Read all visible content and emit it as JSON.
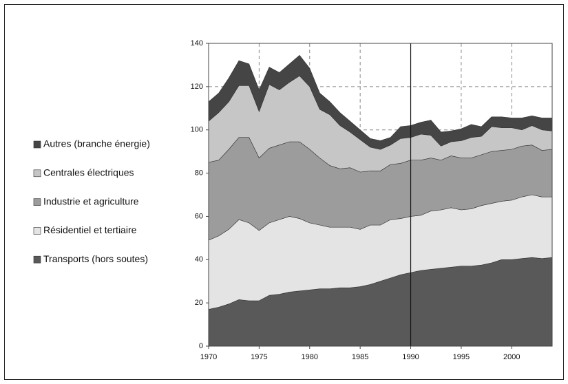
{
  "chart_data": {
    "type": "stacked_area",
    "x": [
      1970,
      1971,
      1972,
      1973,
      1974,
      1975,
      1976,
      1977,
      1978,
      1979,
      1980,
      1981,
      1982,
      1983,
      1984,
      1985,
      1986,
      1987,
      1988,
      1989,
      1990,
      1991,
      1992,
      1993,
      1994,
      1995,
      1996,
      1997,
      1998,
      1999,
      2000,
      2001,
      2002,
      2003,
      2004
    ],
    "series": [
      {
        "name": "Transports (hors soutes)",
        "color": "#595959",
        "values": [
          17,
          18,
          19.5,
          21.5,
          21,
          21,
          23.5,
          24,
          25,
          25.5,
          26,
          26.5,
          26.5,
          27,
          27,
          27.5,
          28.5,
          30,
          31.5,
          33,
          34,
          35,
          35.5,
          36,
          36.5,
          37,
          37,
          37.5,
          38.5,
          40,
          40,
          40.5,
          41,
          40.5,
          41
        ]
      },
      {
        "name": "Résidentiel et tertiaire",
        "color": "#e4e4e4",
        "values": [
          32,
          33,
          34.5,
          37,
          36,
          32.5,
          33.5,
          34.5,
          35,
          33.5,
          31,
          29.5,
          28.5,
          28,
          28,
          26.5,
          27.5,
          26,
          27,
          26,
          26,
          25.5,
          27,
          27,
          27.5,
          26,
          26.5,
          27.5,
          27.5,
          27,
          27.5,
          28.5,
          29,
          28.5,
          28
        ]
      },
      {
        "name": "Industrie et agriculture",
        "color": "#9c9c9c",
        "values": [
          36,
          35,
          37,
          38,
          39.5,
          33.5,
          34.5,
          34.5,
          34.5,
          35.5,
          34,
          31,
          28.5,
          27,
          27.5,
          26.5,
          25,
          25,
          25.5,
          25.5,
          26,
          25.5,
          24.5,
          23,
          24,
          24,
          23.5,
          23.5,
          24,
          23.5,
          23.5,
          23.5,
          23,
          21.5,
          22
        ]
      },
      {
        "name": "Centrales électriques",
        "color": "#c6c6c6",
        "values": [
          19,
          22,
          22,
          24,
          24,
          21.5,
          29.5,
          25.5,
          27.5,
          30.5,
          29,
          22.5,
          23.5,
          20,
          16.5,
          15,
          11,
          10,
          9,
          11.5,
          10.5,
          12,
          10.5,
          6.5,
          6.5,
          8,
          9.5,
          8.5,
          11.5,
          10.5,
          10,
          7.5,
          9,
          9.5,
          8.5
        ]
      },
      {
        "name": "Autres (branche énergie)",
        "color": "#454545",
        "values": [
          9,
          9,
          11,
          11.5,
          10,
          10,
          8,
          8,
          8.5,
          9.5,
          8.5,
          7.5,
          6,
          6,
          5,
          4.5,
          4,
          4,
          3.5,
          5.5,
          5.5,
          5.5,
          7,
          6.5,
          5,
          5.5,
          6,
          4.5,
          4.5,
          5,
          4.5,
          5.5,
          4.5,
          5.5,
          6
        ]
      }
    ],
    "xlim": [
      1970,
      2004
    ],
    "xticks": [
      1970,
      1975,
      1980,
      1985,
      1990,
      1995,
      2000
    ],
    "ylim": [
      0,
      140
    ],
    "yticks": [
      0,
      20,
      40,
      60,
      80,
      100,
      120,
      140
    ],
    "grid": true,
    "reference_line_x": 1990,
    "legend": "left"
  }
}
